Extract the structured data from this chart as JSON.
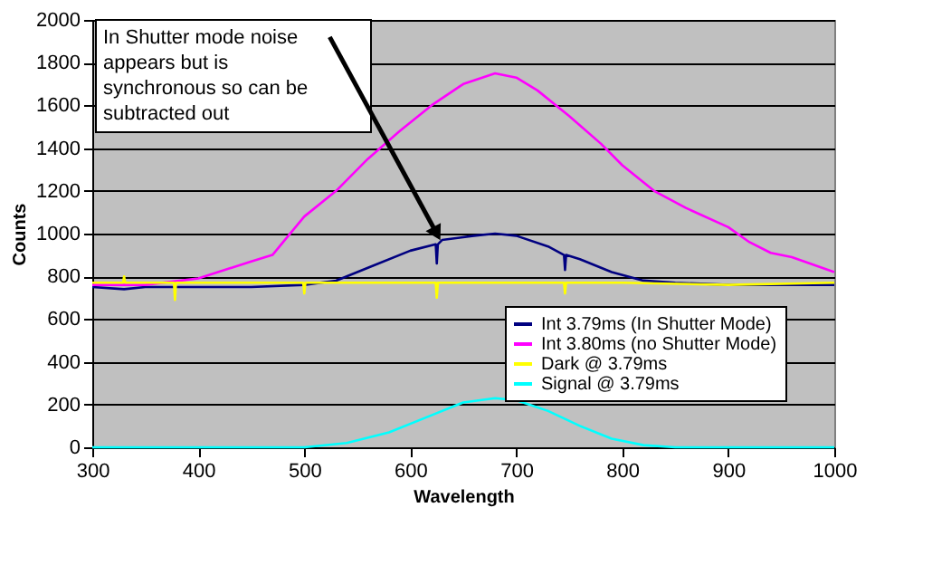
{
  "chart_data": {
    "type": "line",
    "xlabel": "Wavelength",
    "ylabel": "Counts",
    "xlim": [
      300,
      1000
    ],
    "xticks": [
      300,
      400,
      500,
      600,
      700,
      800,
      900,
      1000
    ],
    "ylim": [
      0,
      2000
    ],
    "yticks": [
      0,
      200,
      400,
      600,
      800,
      1000,
      1200,
      1400,
      1600,
      1800,
      2000
    ],
    "grid": "y",
    "legend": "bottom right",
    "line_style": "solid",
    "marker": "none",
    "annotations": [
      {
        "text": "In Shutter mode noise appears but is synchronous so can be subtracted out",
        "x": 625,
        "y": 1000
      }
    ],
    "series": [
      {
        "name": "Int 3.79ms (In Shutter Mode)",
        "color": "#000080",
        "x": [
          300,
          330,
          350,
          400,
          450,
          500,
          530,
          560,
          600,
          624,
          625,
          626,
          630,
          660,
          680,
          700,
          730,
          745,
          746,
          747,
          760,
          790,
          820,
          850,
          900,
          1000
        ],
        "values": [
          750,
          740,
          750,
          750,
          750,
          760,
          780,
          840,
          920,
          950,
          860,
          950,
          970,
          990,
          1000,
          990,
          940,
          900,
          830,
          900,
          880,
          820,
          780,
          770,
          760,
          760
        ]
      },
      {
        "name": "Int 3.80ms (no Shutter Mode)",
        "color": "#ff00ff",
        "x": [
          300,
          350,
          400,
          450,
          470,
          480,
          500,
          530,
          560,
          590,
          620,
          650,
          680,
          700,
          720,
          750,
          780,
          800,
          830,
          860,
          900,
          920,
          940,
          960,
          1000
        ],
        "values": [
          760,
          760,
          790,
          870,
          900,
          960,
          1080,
          1200,
          1350,
          1480,
          1600,
          1700,
          1750,
          1730,
          1670,
          1550,
          1420,
          1320,
          1200,
          1120,
          1030,
          960,
          910,
          890,
          820
        ]
      },
      {
        "name": "Dark @ 3.79ms",
        "color": "#ffff00",
        "x": [
          300,
          329,
          330,
          331,
          377,
          378,
          379,
          460,
          499,
          500,
          501,
          600,
          624,
          625,
          626,
          700,
          745,
          746,
          747,
          800,
          900,
          1000
        ],
        "values": [
          770,
          770,
          800,
          770,
          770,
          690,
          770,
          770,
          770,
          720,
          770,
          770,
          770,
          700,
          770,
          770,
          770,
          720,
          770,
          770,
          760,
          770
        ]
      },
      {
        "name": "Signal @ 3.79ms",
        "color": "#00ffff",
        "x": [
          300,
          400,
          500,
          540,
          580,
          620,
          650,
          680,
          700,
          730,
          760,
          790,
          820,
          850,
          900,
          1000
        ],
        "values": [
          0,
          0,
          0,
          20,
          70,
          150,
          210,
          230,
          220,
          170,
          100,
          40,
          10,
          0,
          0,
          0
        ]
      }
    ]
  }
}
